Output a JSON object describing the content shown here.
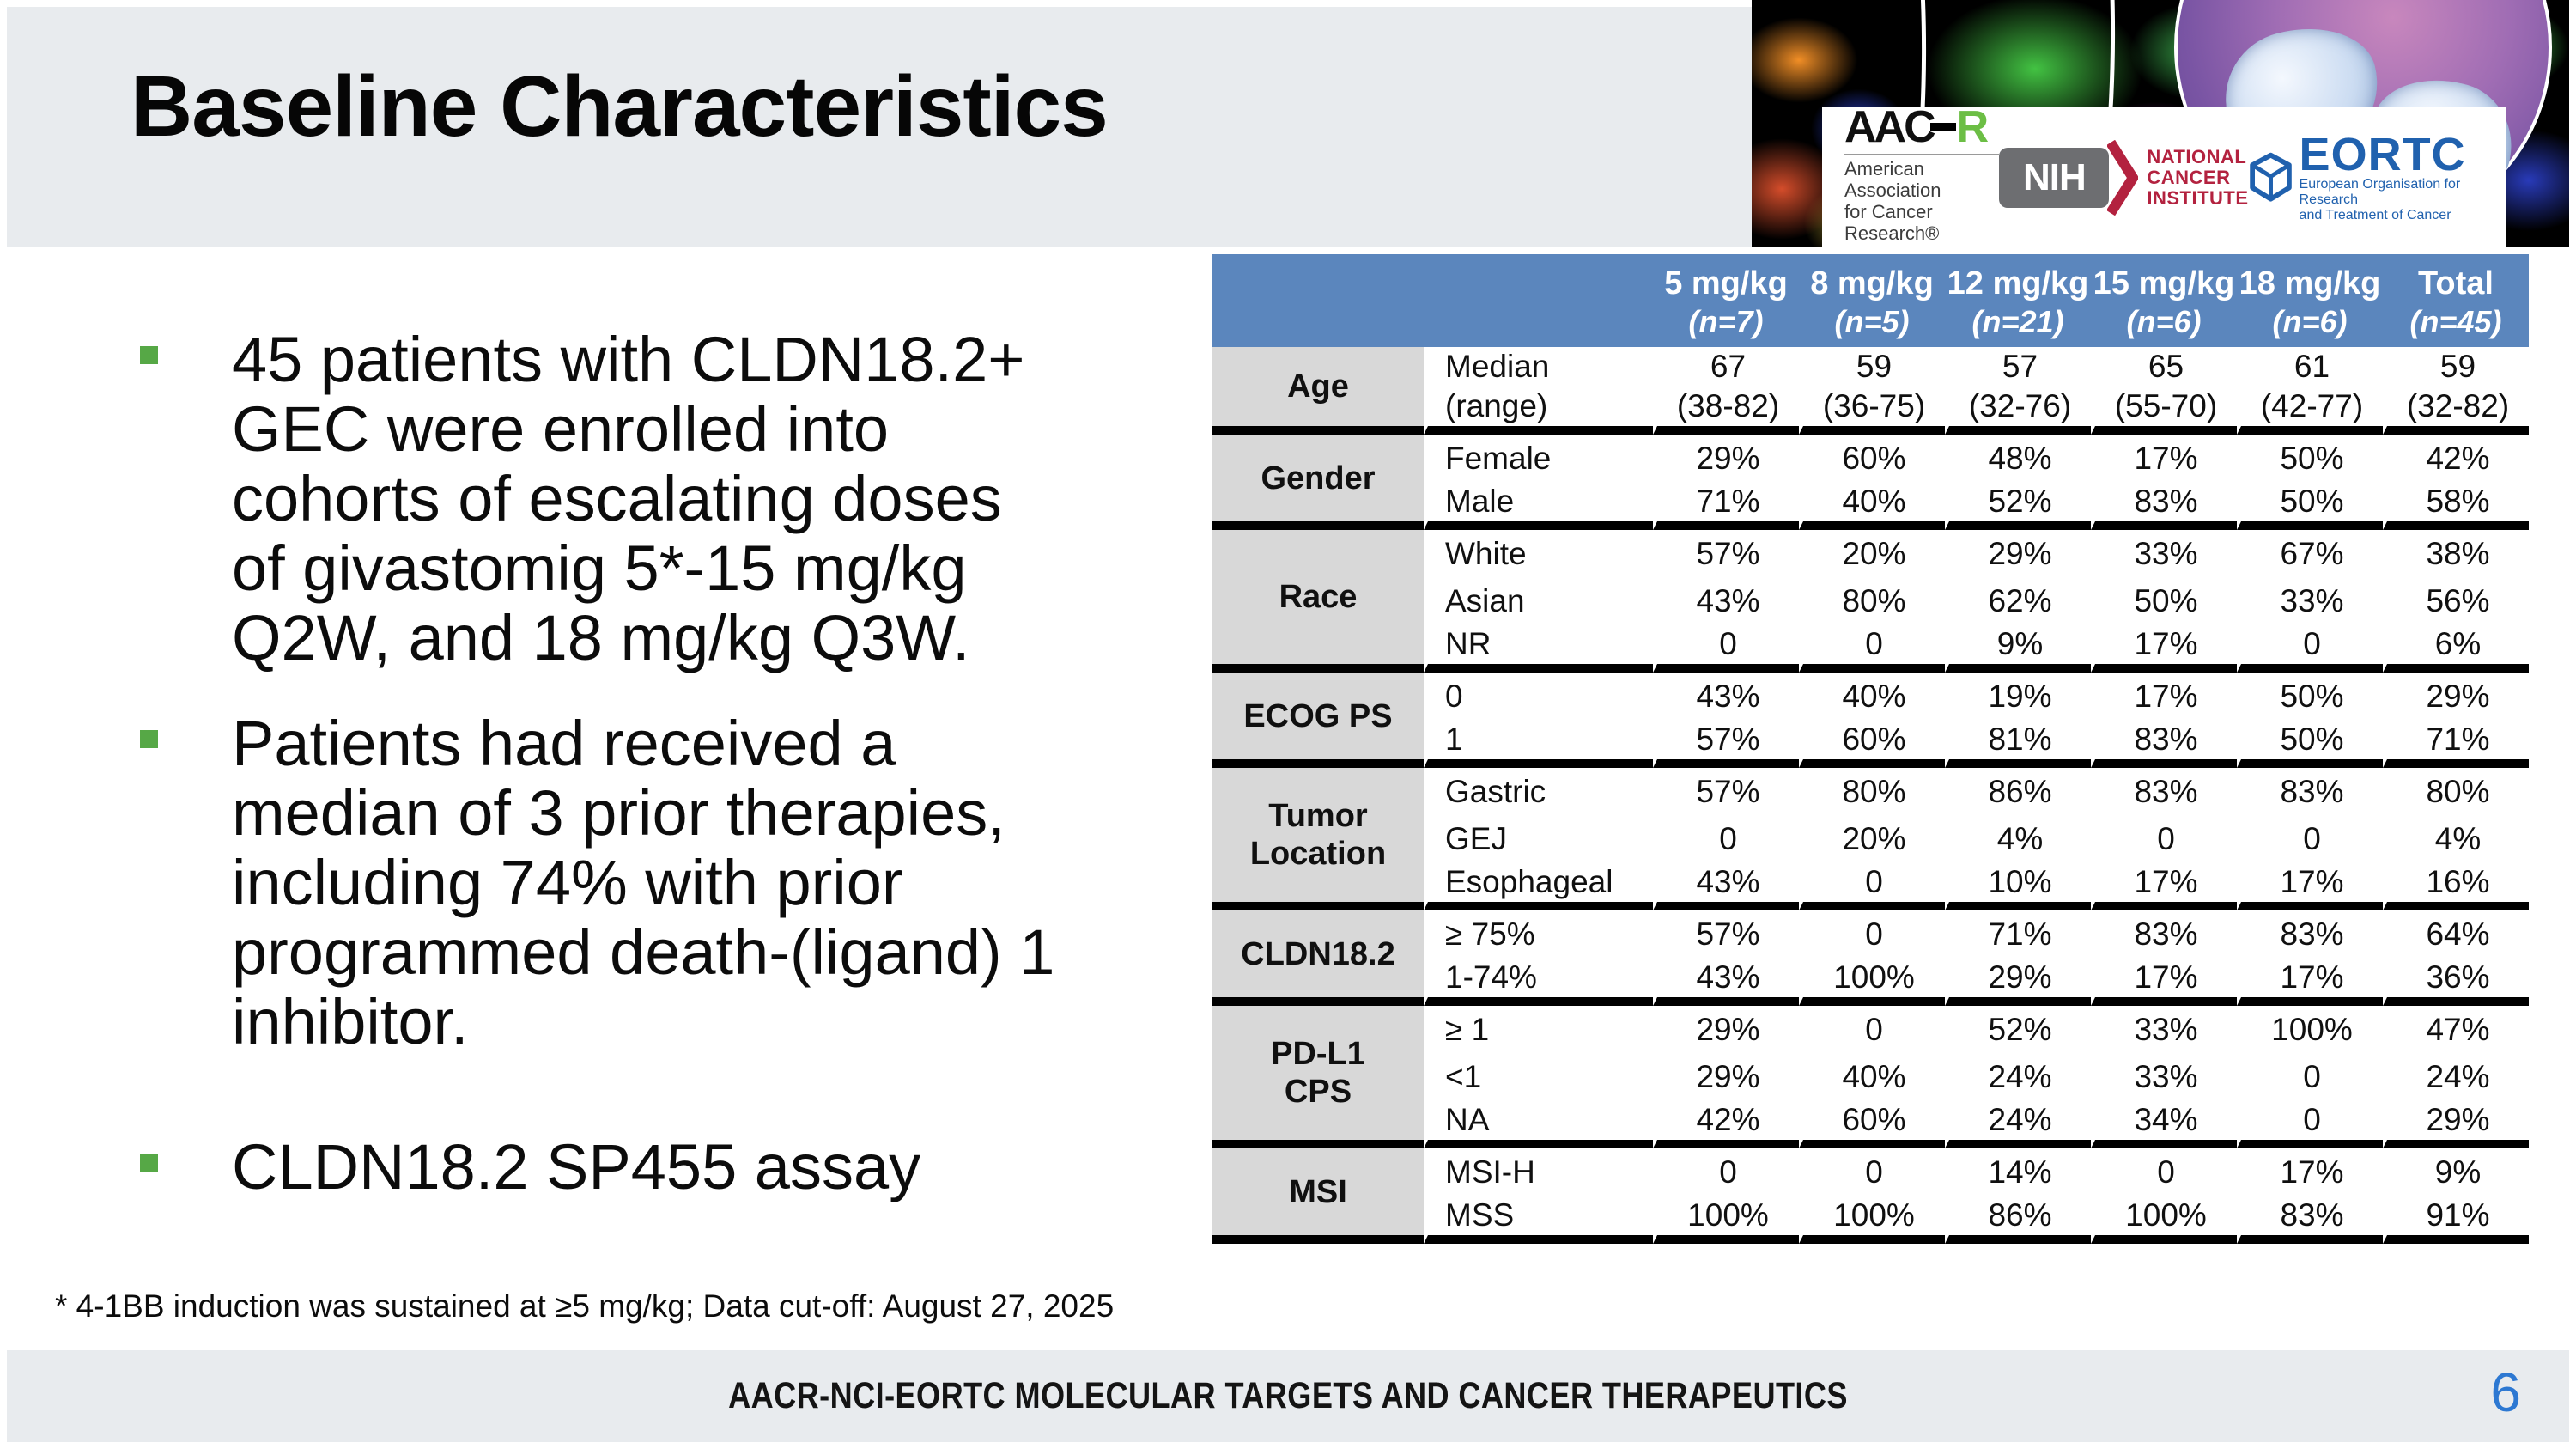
{
  "slide": {
    "title": "Baseline Characteristics",
    "page_number": "6",
    "footer": "AACR-NCI-EORTC MOLECULAR TARGETS AND CANCER THERAPEUTICS",
    "footnote": "* 4-1BB induction was sustained at ≥5 mg/kg; Data cut-off: August 27, 2025"
  },
  "bullets": [
    {
      "text": "45 patients with CLDN18.2+\nGEC were enrolled into\ncohorts of escalating doses\nof givastomig 5*-15 mg/kg\nQ2W, and 18 mg/kg Q3W."
    },
    {
      "text": "Patients had received a\nmedian of 3 prior therapies,\nincluding 74% with prior\nprogrammed death-(ligand) 1\ninhibitor."
    },
    {
      "text": "CLDN18.2 SP455 assay"
    }
  ],
  "logos": {
    "aacr": {
      "acronym_left": "AAC",
      "acronym_right": "R",
      "line1": "American Association",
      "line2": "for Cancer Research®"
    },
    "nih": {
      "badge": "NIH",
      "line1": "NATIONAL",
      "line2": "CANCER",
      "line3": "INSTITUTE"
    },
    "eortc": {
      "acronym": "EORTC",
      "line1": "European Organisation for Research",
      "line2": "and Treatment of Cancer"
    }
  },
  "table": {
    "header_cols": [
      {
        "dose": "5 mg/kg",
        "n": "(n=7)"
      },
      {
        "dose": "8 mg/kg",
        "n": "(n=5)"
      },
      {
        "dose": "12 mg/kg",
        "n": "(n=21)"
      },
      {
        "dose": "15 mg/kg",
        "n": "(n=6)"
      },
      {
        "dose": "18 mg/kg",
        "n": "(n=6)"
      },
      {
        "dose": "Total",
        "n": "(n=45)"
      }
    ],
    "groups": [
      {
        "category": "Age",
        "rows": [
          {
            "label": "Median\n(range)",
            "values": [
              "67\n(38-82)",
              "59\n(36-75)",
              "57\n(32-76)",
              "65\n(55-70)",
              "61\n(42-77)",
              "59\n(32-82)"
            ]
          }
        ]
      },
      {
        "category": "Gender",
        "rows": [
          {
            "label": "Female",
            "values": [
              "29%",
              "60%",
              "48%",
              "17%",
              "50%",
              "42%"
            ]
          },
          {
            "label": "Male",
            "values": [
              "71%",
              "40%",
              "52%",
              "83%",
              "50%",
              "58%"
            ]
          }
        ]
      },
      {
        "category": "Race",
        "rows": [
          {
            "label": "White",
            "values": [
              "57%",
              "20%",
              "29%",
              "33%",
              "67%",
              "38%"
            ]
          },
          {
            "label": "Asian",
            "values": [
              "43%",
              "80%",
              "62%",
              "50%",
              "33%",
              "56%"
            ]
          },
          {
            "label": "NR",
            "values": [
              "0",
              "0",
              "9%",
              "17%",
              "0",
              "6%"
            ]
          }
        ]
      },
      {
        "category": "ECOG PS",
        "rows": [
          {
            "label": "0",
            "values": [
              "43%",
              "40%",
              "19%",
              "17%",
              "50%",
              "29%"
            ]
          },
          {
            "label": "1",
            "values": [
              "57%",
              "60%",
              "81%",
              "83%",
              "50%",
              "71%"
            ]
          }
        ]
      },
      {
        "category": "Tumor\nLocation",
        "rows": [
          {
            "label": "Gastric",
            "values": [
              "57%",
              "80%",
              "86%",
              "83%",
              "83%",
              "80%"
            ]
          },
          {
            "label": "GEJ",
            "values": [
              "0",
              "20%",
              "4%",
              "0",
              "0",
              "4%"
            ]
          },
          {
            "label": "Esophageal",
            "values": [
              "43%",
              "0",
              "10%",
              "17%",
              "17%",
              "16%"
            ]
          }
        ]
      },
      {
        "category": "CLDN18.2",
        "rows": [
          {
            "label": "≥ 75%",
            "values": [
              "57%",
              "0",
              "71%",
              "83%",
              "83%",
              "64%"
            ]
          },
          {
            "label": "1-74%",
            "values": [
              "43%",
              "100%",
              "29%",
              "17%",
              "17%",
              "36%"
            ]
          }
        ]
      },
      {
        "category": "PD-L1\nCPS",
        "rows": [
          {
            "label": "≥ 1",
            "values": [
              "29%",
              "0",
              "52%",
              "33%",
              "100%",
              "47%"
            ]
          },
          {
            "label": "<1",
            "values": [
              "29%",
              "40%",
              "24%",
              "33%",
              "0",
              "24%"
            ]
          },
          {
            "label": "NA",
            "values": [
              "42%",
              "60%",
              "24%",
              "34%",
              "0",
              "29%"
            ]
          }
        ]
      },
      {
        "category": "MSI",
        "rows": [
          {
            "label": "MSI-H",
            "values": [
              "0",
              "0",
              "14%",
              "0",
              "17%",
              "9%"
            ]
          },
          {
            "label": "MSS",
            "values": [
              "100%",
              "100%",
              "86%",
              "100%",
              "83%",
              "91%"
            ]
          }
        ]
      }
    ]
  },
  "colors": {
    "header_blue": "#5b86bd",
    "category_gray": "#d8d8d8",
    "band_gray": "#e8ebee",
    "bullet_green": "#56a846",
    "page_blue": "#2d78d2",
    "footer_text": "#141414",
    "nih_red": "#b3223f",
    "nih_gray": "#6d6e71",
    "eortc_blue": "#2061ae",
    "aacr_green": "#6cbe45"
  }
}
